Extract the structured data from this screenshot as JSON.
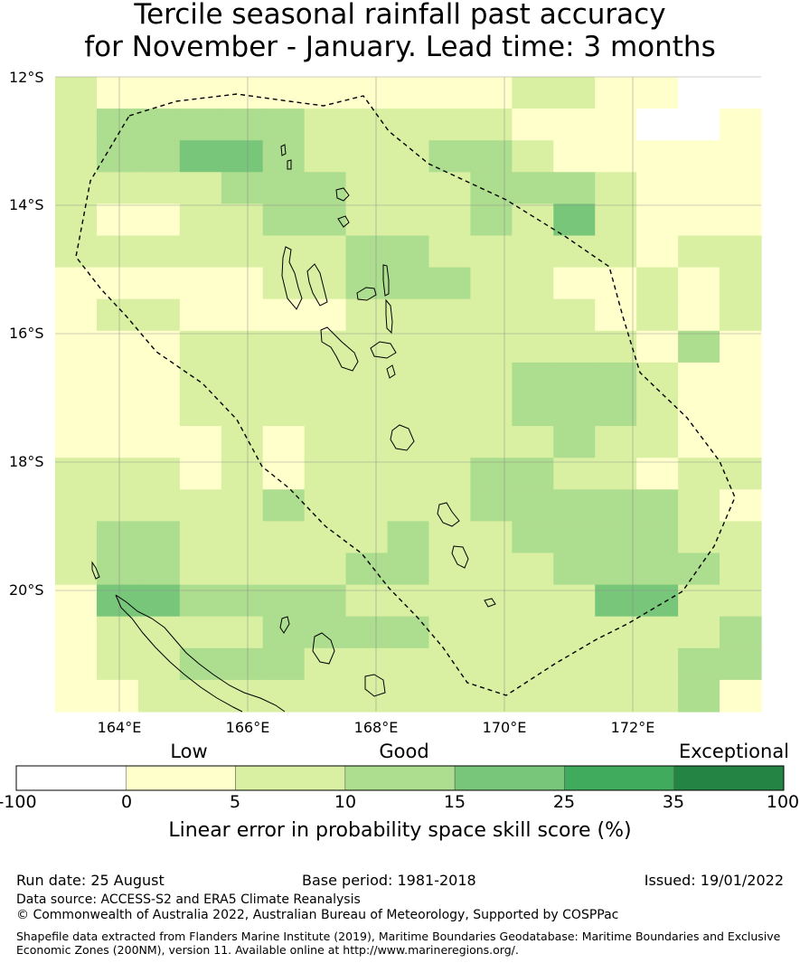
{
  "title_line1": "Tercile seasonal rainfall past accuracy",
  "title_line2": "for November - January. Lead time: 3 months",
  "lat_labels": [
    "12°S",
    "14°S",
    "16°S",
    "18°S",
    "20°S"
  ],
  "lon_labels": [
    "164°E",
    "166°E",
    "168°E",
    "170°E",
    "172°E"
  ],
  "colorbar": {
    "categories": [
      "Low",
      "Good",
      "Exceptional"
    ],
    "ticks": [
      "-100",
      "0",
      "5",
      "10",
      "15",
      "25",
      "35",
      "100"
    ],
    "colors": [
      "#ffffff",
      "#ffffcc",
      "#d9f0a3",
      "#addd8e",
      "#78c679",
      "#41ab5d",
      "#238443"
    ],
    "label": "Linear error in probability space skill score (%)"
  },
  "footer": {
    "run_date": "Run date: 25 August",
    "base_period": "Base period: 1981-2018",
    "issued": "Issued: 19/01/2022",
    "data_source": "Data source: ACCESS-S2 and ERA5 Climate Reanalysis",
    "copyright": "© Commonwealth of Australia 2022, Australian Bureau of Meteorology, Supported by COSPPac",
    "shapefile_line1": "Shapefile data extracted from Flanders Marine Institute (2019), Maritime Boundaries Geodatabase: Maritime Boundaries and Exclusive",
    "shapefile_line2": "Economic Zones (200NM), version 11. Available online at http://www.marineregions.org/."
  },
  "map": {
    "grid_levels": [
      "21111111111221100",
      "23333322222111001",
      "23344322233211111",
      "22223332223332111",
      "21122332223242111",
      "22222223322222122",
      "11111223332211212",
      "12211112222221212",
      "11122222222222131",
      "11122222222333211",
      "11122222222333211",
      "11112122222232211",
      "22212122223322122",
      "22222322223333321",
      "23322222322333322",
      "23322223322233332",
      "14433332222224422",
      "12222333322222223",
      "12233322222222233",
      "11222222222222231"
    ]
  }
}
